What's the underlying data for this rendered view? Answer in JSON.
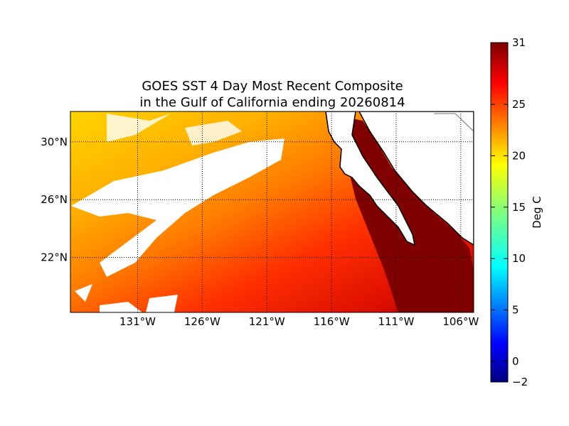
{
  "map": {
    "title": [
      "GOES SST 4 Day Most Recent Composite",
      "in the Gulf of California ending 20260814"
    ],
    "lonlim": [
      -136.2,
      -105
    ],
    "latlim": [
      18.2,
      32.1
    ],
    "lonticks": [
      {
        "value": -131,
        "label": "131°W"
      },
      {
        "value": -126,
        "label": "126°W"
      },
      {
        "value": -121,
        "label": "121°W"
      },
      {
        "value": -116,
        "label": "116°W"
      },
      {
        "value": -111,
        "label": "111°W"
      },
      {
        "value": -106,
        "label": "106°W"
      }
    ],
    "latticks": [
      {
        "value": 30,
        "label": "30°N"
      },
      {
        "value": 26,
        "label": "26°N"
      },
      {
        "value": 22,
        "label": "22°N"
      }
    ],
    "colorbar": {
      "label": "Deg C",
      "lim": [
        -2,
        31
      ],
      "ticks": [
        {
          "value": -2,
          "label": "−2"
        },
        0,
        5,
        10,
        15,
        20,
        25,
        31
      ]
    }
  }
}
